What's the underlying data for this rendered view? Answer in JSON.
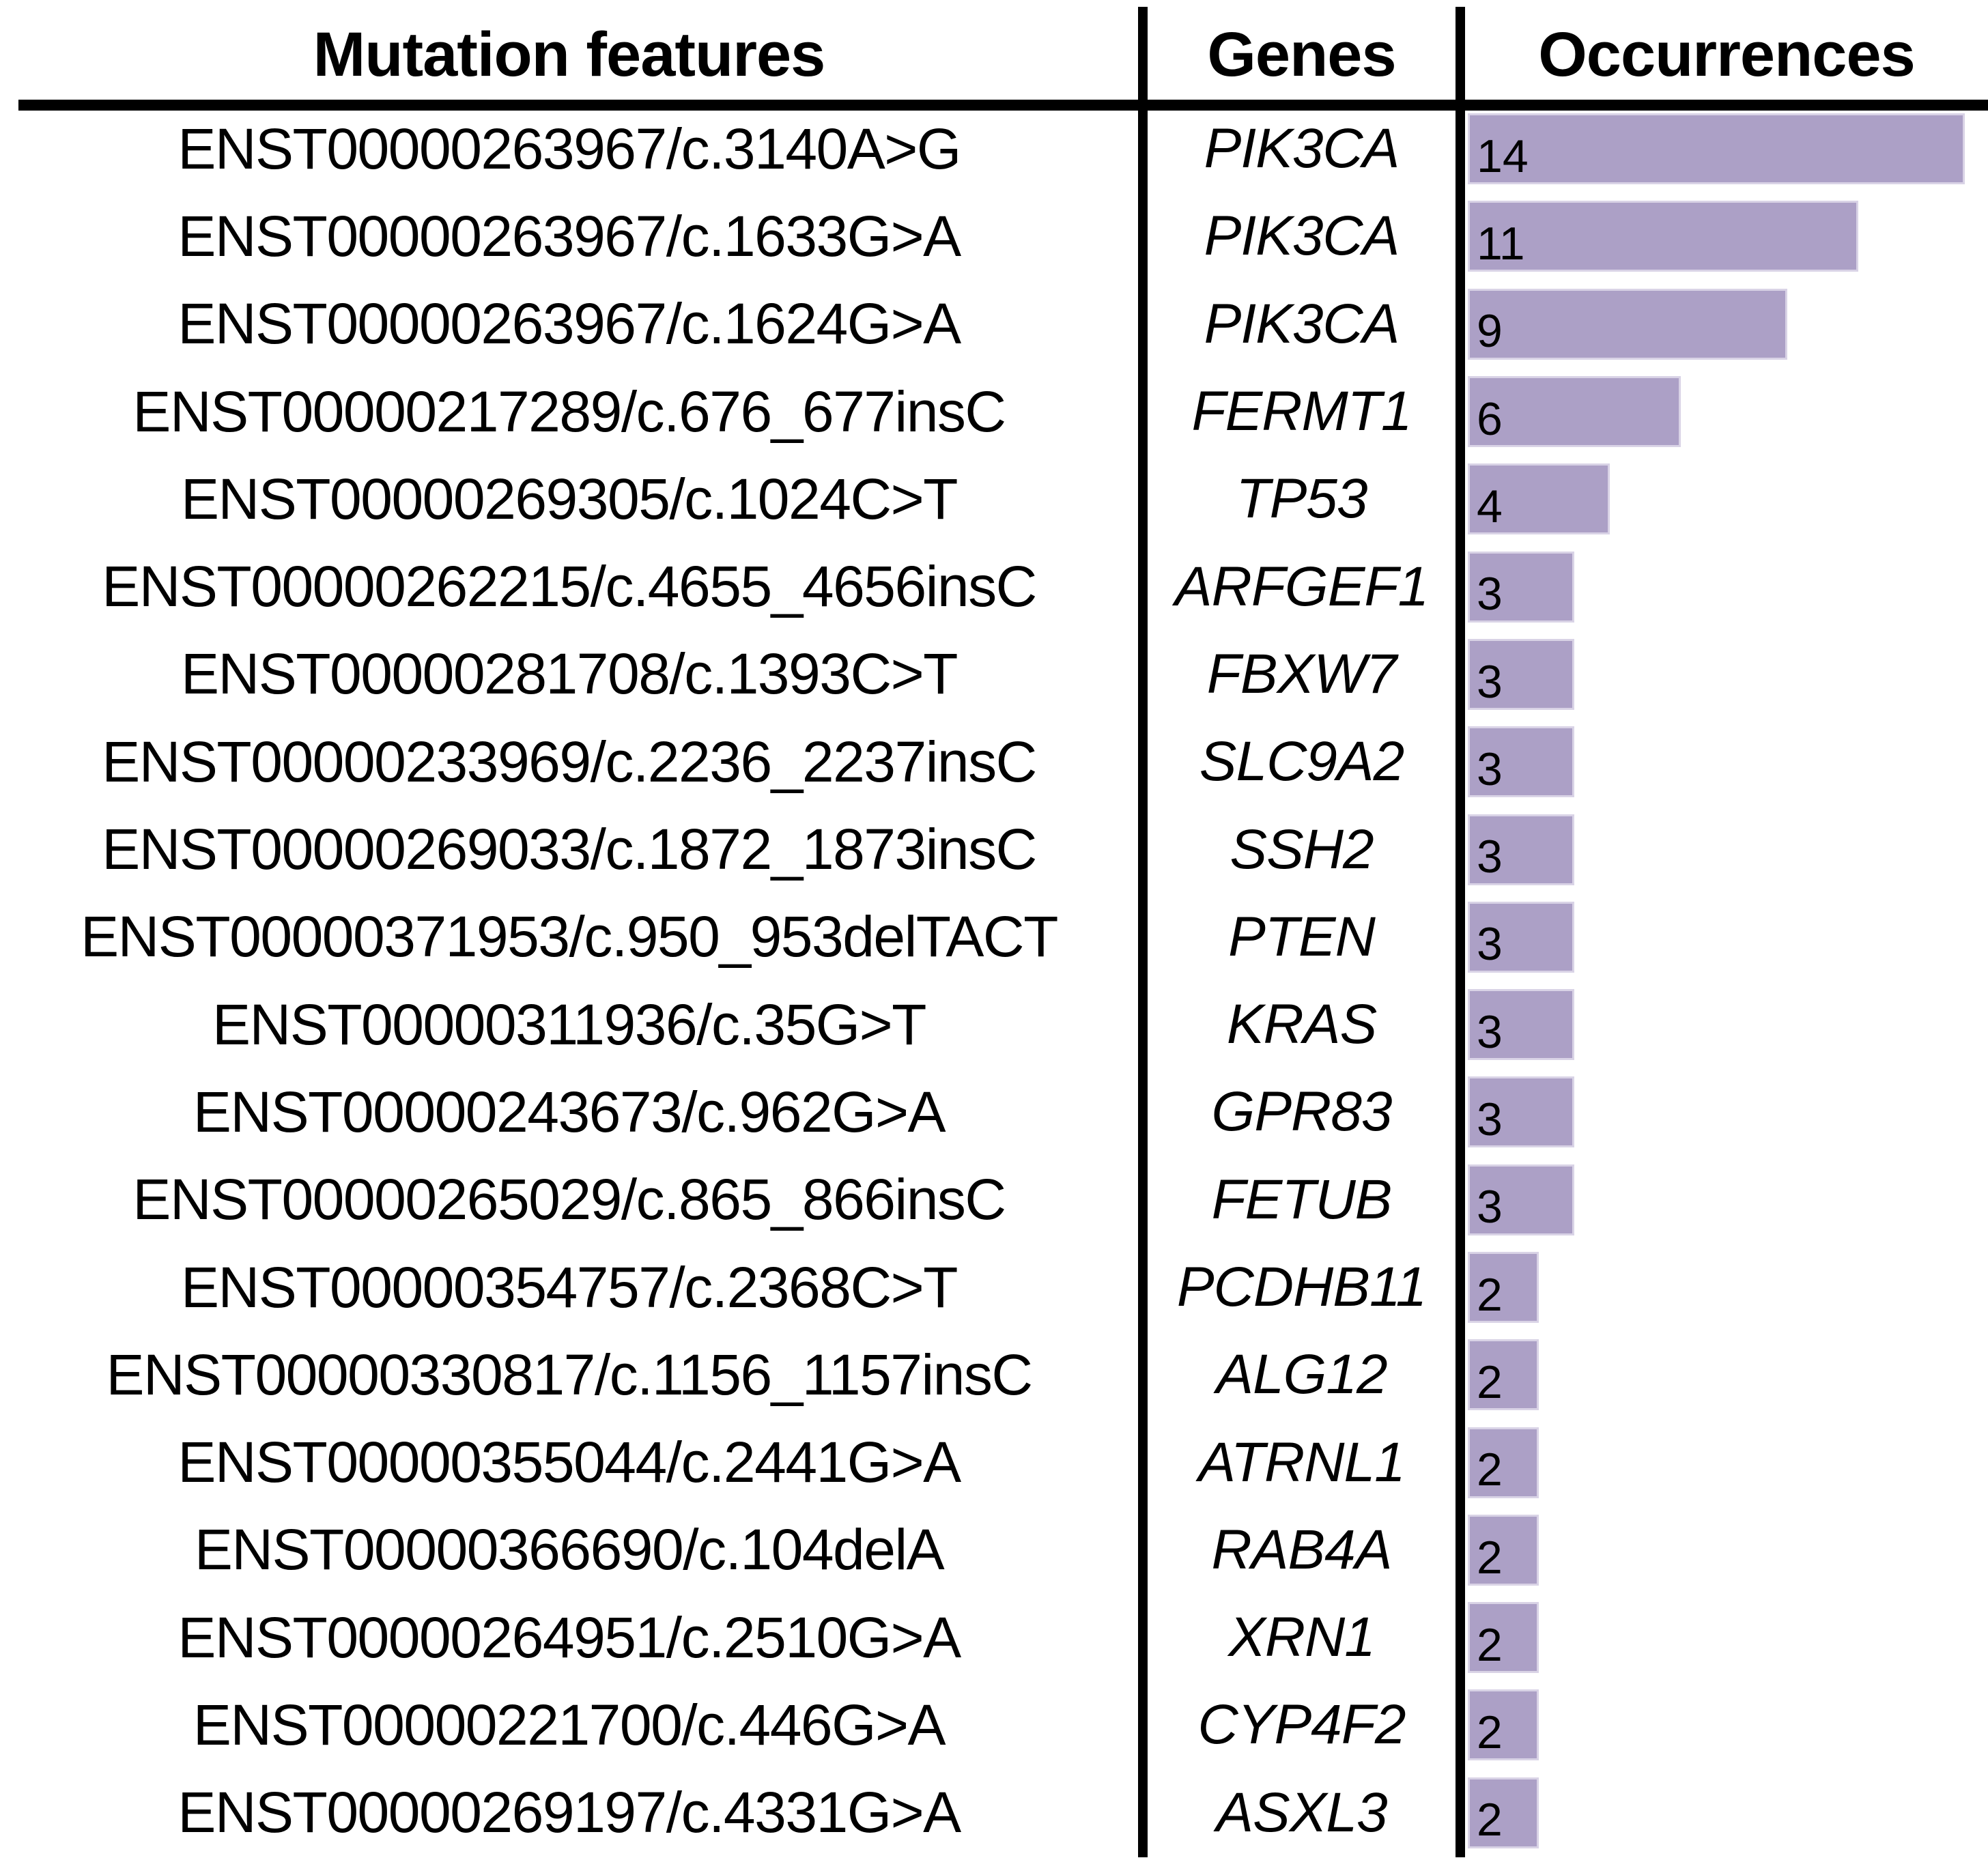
{
  "header": {
    "col1": "Mutation features",
    "col2": "Genes",
    "col3": "Occurrences"
  },
  "chart_data": {
    "type": "bar",
    "orientation": "horizontal",
    "title": "",
    "columns": [
      "Mutation features",
      "Genes",
      "Occurrences"
    ],
    "xlim": [
      0,
      14
    ],
    "grid": false,
    "legend": "none",
    "bar_color": "#aca0c6",
    "bar_border_color": "#d9d3e6",
    "rows": [
      {
        "mutation": "ENST00000263967/c.3140A>G",
        "gene": "PIK3CA",
        "occurrences": 14
      },
      {
        "mutation": "ENST00000263967/c.1633G>A",
        "gene": "PIK3CA",
        "occurrences": 11
      },
      {
        "mutation": "ENST00000263967/c.1624G>A",
        "gene": "PIK3CA",
        "occurrences": 9
      },
      {
        "mutation": "ENST00000217289/c.676_677insC",
        "gene": "FERMT1",
        "occurrences": 6
      },
      {
        "mutation": "ENST00000269305/c.1024C>T",
        "gene": "TP53",
        "occurrences": 4
      },
      {
        "mutation": "ENST00000262215/c.4655_4656insC",
        "gene": "ARFGEF1",
        "occurrences": 3
      },
      {
        "mutation": "ENST00000281708/c.1393C>T",
        "gene": "FBXW7",
        "occurrences": 3
      },
      {
        "mutation": "ENST00000233969/c.2236_2237insC",
        "gene": "SLC9A2",
        "occurrences": 3
      },
      {
        "mutation": "ENST00000269033/c.1872_1873insC",
        "gene": "SSH2",
        "occurrences": 3
      },
      {
        "mutation": "ENST00000371953/c.950_953delTACT",
        "gene": "PTEN",
        "occurrences": 3
      },
      {
        "mutation": "ENST00000311936/c.35G>T",
        "gene": "KRAS",
        "occurrences": 3
      },
      {
        "mutation": "ENST00000243673/c.962G>A",
        "gene": "GPR83",
        "occurrences": 3
      },
      {
        "mutation": "ENST00000265029/c.865_866insC",
        "gene": "FETUB",
        "occurrences": 3
      },
      {
        "mutation": "ENST00000354757/c.2368C>T",
        "gene": "PCDHB11",
        "occurrences": 2
      },
      {
        "mutation": "ENST00000330817/c.1156_1157insC",
        "gene": "ALG12",
        "occurrences": 2
      },
      {
        "mutation": "ENST00000355044/c.2441G>A",
        "gene": "ATRNL1",
        "occurrences": 2
      },
      {
        "mutation": "ENST00000366690/c.104delA",
        "gene": "RAB4A",
        "occurrences": 2
      },
      {
        "mutation": "ENST00000264951/c.2510G>A",
        "gene": "XRN1",
        "occurrences": 2
      },
      {
        "mutation": "ENST00000221700/c.446G>A",
        "gene": "CYP4F2",
        "occurrences": 2
      },
      {
        "mutation": "ENST00000269197/c.4331G>A",
        "gene": "ASXL3",
        "occurrences": 2
      }
    ]
  }
}
